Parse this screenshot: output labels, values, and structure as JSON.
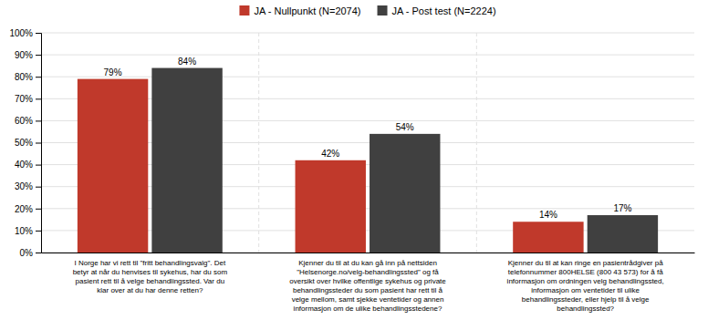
{
  "chart_data": {
    "type": "bar",
    "categories": [
      "I Norge har vi rett til \"fritt behandlingsvalg\". Det\nbetyr at når du henvises til sykehus, har du som\npasient rett til å velge behandlingssted. Var du\nklar over at du har denne retten?",
      "Kjenner du til at du kan gå inn på nettsiden\n\"Helsenorge.no/velg-behandlingssted\" og få\noversikt over hvilke offentlige sykehus og private\nbehandlingssteder du som pasient har rett til å\nvelge mellom, samt sjekke ventetider og annen\ninformasjon om de ulike behandlingsstedene?",
      "Kjenner du til at kan ringe en pasientrådgiver på\ntelefonnummer 800HELSE (800 43 573) for å få\ninformasjon om ordningen velg behandlingssted,\ninformasjon om ventetider til ulike\nbehandlingssteder, eller hjelp til å velge\nbehandlingssted?"
    ],
    "series": [
      {
        "name": "JA - Nullpunkt (N=2074)",
        "color": "#C0392B",
        "values": [
          79,
          42,
          14
        ],
        "value_labels": [
          "79%",
          "42%",
          "14%"
        ]
      },
      {
        "name": "JA - Post test (N=2224)",
        "color": "#404040",
        "values": [
          84,
          54,
          17
        ],
        "value_labels": [
          "84%",
          "54%",
          "17%"
        ]
      }
    ],
    "ylim": [
      0,
      100
    ],
    "yticks": [
      {
        "value": 0,
        "label": "0%"
      },
      {
        "value": 10,
        "label": "10%"
      },
      {
        "value": 20,
        "label": "20%"
      },
      {
        "value": 30,
        "label": "30%"
      },
      {
        "value": 40,
        "label": "40%"
      },
      {
        "value": 50,
        "label": "50%"
      },
      {
        "value": 60,
        "label": "60%"
      },
      {
        "value": 70,
        "label": "70%"
      },
      {
        "value": 80,
        "label": "80%"
      },
      {
        "value": 90,
        "label": "90%"
      },
      {
        "value": 100,
        "label": "100%"
      }
    ],
    "grid": true,
    "legend": "top",
    "data_labels": true
  }
}
